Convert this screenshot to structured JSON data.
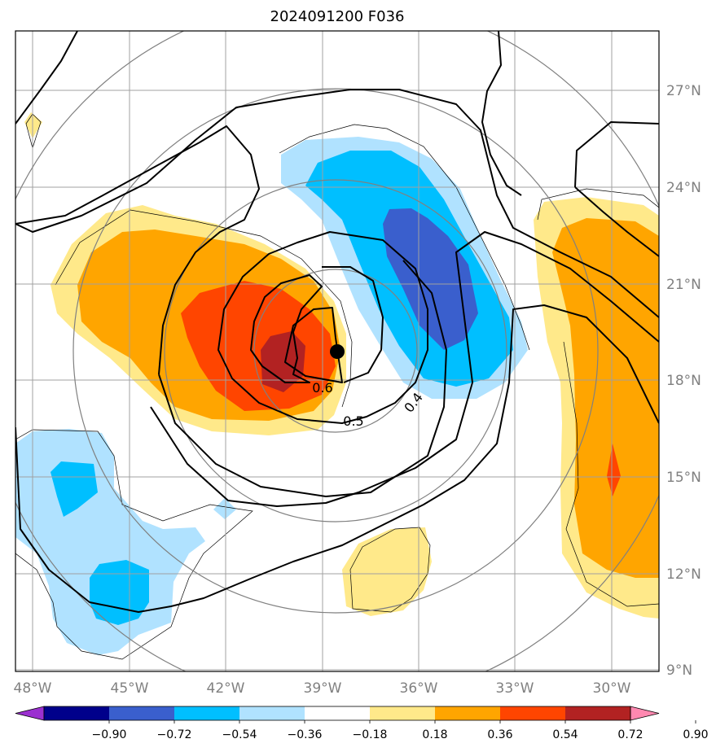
{
  "chart_data": {
    "type": "heatmap",
    "title": "2024091200 F036",
    "x_ticks": [
      "48°W",
      "45°W",
      "42°W",
      "39°W",
      "36°W",
      "33°W",
      "30°W"
    ],
    "y_ticks": [
      "27°N",
      "24°N",
      "21°N",
      "18°N",
      "15°N",
      "12°N",
      "9°N"
    ],
    "lon_range": [
      -48.5,
      -28.5
    ],
    "lat_range": [
      9.0,
      28.5
    ],
    "colorbar": {
      "levels": [
        "−0.90",
        "−0.72",
        "−0.54",
        "−0.36",
        "−0.18",
        "0.18",
        "0.36",
        "0.54",
        "0.72",
        "0.90"
      ],
      "colors": [
        "#9b30d0",
        "#00008b",
        "#3a5fcd",
        "#00bfff",
        "#b0e2ff",
        "#ffffff",
        "#ffe98a",
        "#ffa500",
        "#ff4500",
        "#b22222",
        "#ff88b0"
      ]
    },
    "center_marker": {
      "lon": -38.5,
      "lat": 18.9
    },
    "contour_labels": [
      {
        "text": "0.6",
        "lon": -38.5,
        "lat": 17.75
      },
      {
        "text": "0.5",
        "lon": -38.0,
        "lat": 16.75
      },
      {
        "text": "0.4",
        "lon": -36.0,
        "lat": 17.5
      }
    ],
    "grid": true
  }
}
